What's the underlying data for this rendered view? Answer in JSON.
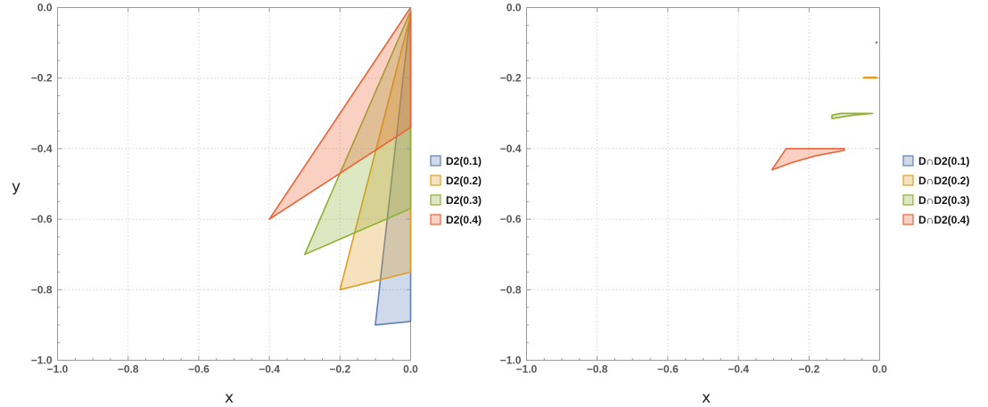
{
  "chart_data": [
    {
      "type": "area",
      "xlabel": "x",
      "ylabel": "y",
      "xlim": [
        -1.0,
        0.0
      ],
      "ylim": [
        -1.0,
        0.0
      ],
      "xticks": [
        "−1.0",
        "−0.8",
        "−0.6",
        "−0.4",
        "−0.2",
        "0.0"
      ],
      "yticks": [
        "−1.0",
        "−0.8",
        "−0.6",
        "−0.4",
        "−0.2",
        "0.0"
      ],
      "grid": true,
      "legend_position": "right",
      "series": [
        {
          "name": "D2(0.1)",
          "color": "#5E81B5",
          "polygon": [
            [
              0,
              -0.01
            ],
            [
              0,
              -0.89
            ],
            [
              -0.1,
              -0.9
            ]
          ]
        },
        {
          "name": "D2(0.2)",
          "color": "#E19C24",
          "polygon": [
            [
              0,
              -0.02
            ],
            [
              0,
              -0.75
            ],
            [
              -0.2,
              -0.8
            ]
          ]
        },
        {
          "name": "D2(0.3)",
          "color": "#8FB032",
          "polygon": [
            [
              0,
              -0.01
            ],
            [
              0,
              -0.57
            ],
            [
              -0.3,
              -0.7
            ]
          ]
        },
        {
          "name": "D2(0.4)",
          "color": "#EB6235",
          "polygon": [
            [
              0,
              0.0
            ],
            [
              0,
              -0.34
            ],
            [
              -0.4,
              -0.6
            ]
          ]
        }
      ]
    },
    {
      "type": "area",
      "xlabel": "x",
      "ylabel": "",
      "xlim": [
        -1.0,
        0.0
      ],
      "ylim": [
        -1.0,
        0.0
      ],
      "xticks": [
        "−1.0",
        "−0.8",
        "−0.6",
        "−0.4",
        "−0.2",
        "0.0"
      ],
      "yticks": [
        "−1.0",
        "−0.8",
        "−0.6",
        "−0.4",
        "−0.2",
        "0.0"
      ],
      "grid": true,
      "legend_position": "right",
      "series": [
        {
          "name": "D∩D2(0.1)",
          "color": "#5E81B5",
          "polygon": [
            [
              -0.01,
              -0.098
            ],
            [
              -0.008,
              -0.098
            ],
            [
              -0.008,
              -0.1
            ],
            [
              -0.01,
              -0.1
            ]
          ]
        },
        {
          "name": "D∩D2(0.2)",
          "color": "#E19C24",
          "polygon": [
            [
              -0.045,
              -0.2
            ],
            [
              -0.01,
              -0.2
            ],
            [
              -0.01,
              -0.197
            ],
            [
              -0.045,
              -0.198
            ]
          ]
        },
        {
          "name": "D∩D2(0.3)",
          "color": "#8FB032",
          "polygon": [
            [
              -0.135,
              -0.315
            ],
            [
              -0.135,
              -0.305
            ],
            [
              -0.11,
              -0.3
            ],
            [
              -0.02,
              -0.3
            ],
            [
              -0.075,
              -0.305
            ]
          ]
        },
        {
          "name": "D∩D2(0.4)",
          "color": "#EB6235",
          "polygon": [
            [
              -0.305,
              -0.46
            ],
            [
              -0.265,
              -0.4
            ],
            [
              -0.1,
              -0.4
            ],
            [
              -0.1,
              -0.405
            ],
            [
              -0.18,
              -0.42
            ],
            [
              -0.25,
              -0.44
            ]
          ]
        }
      ]
    }
  ]
}
